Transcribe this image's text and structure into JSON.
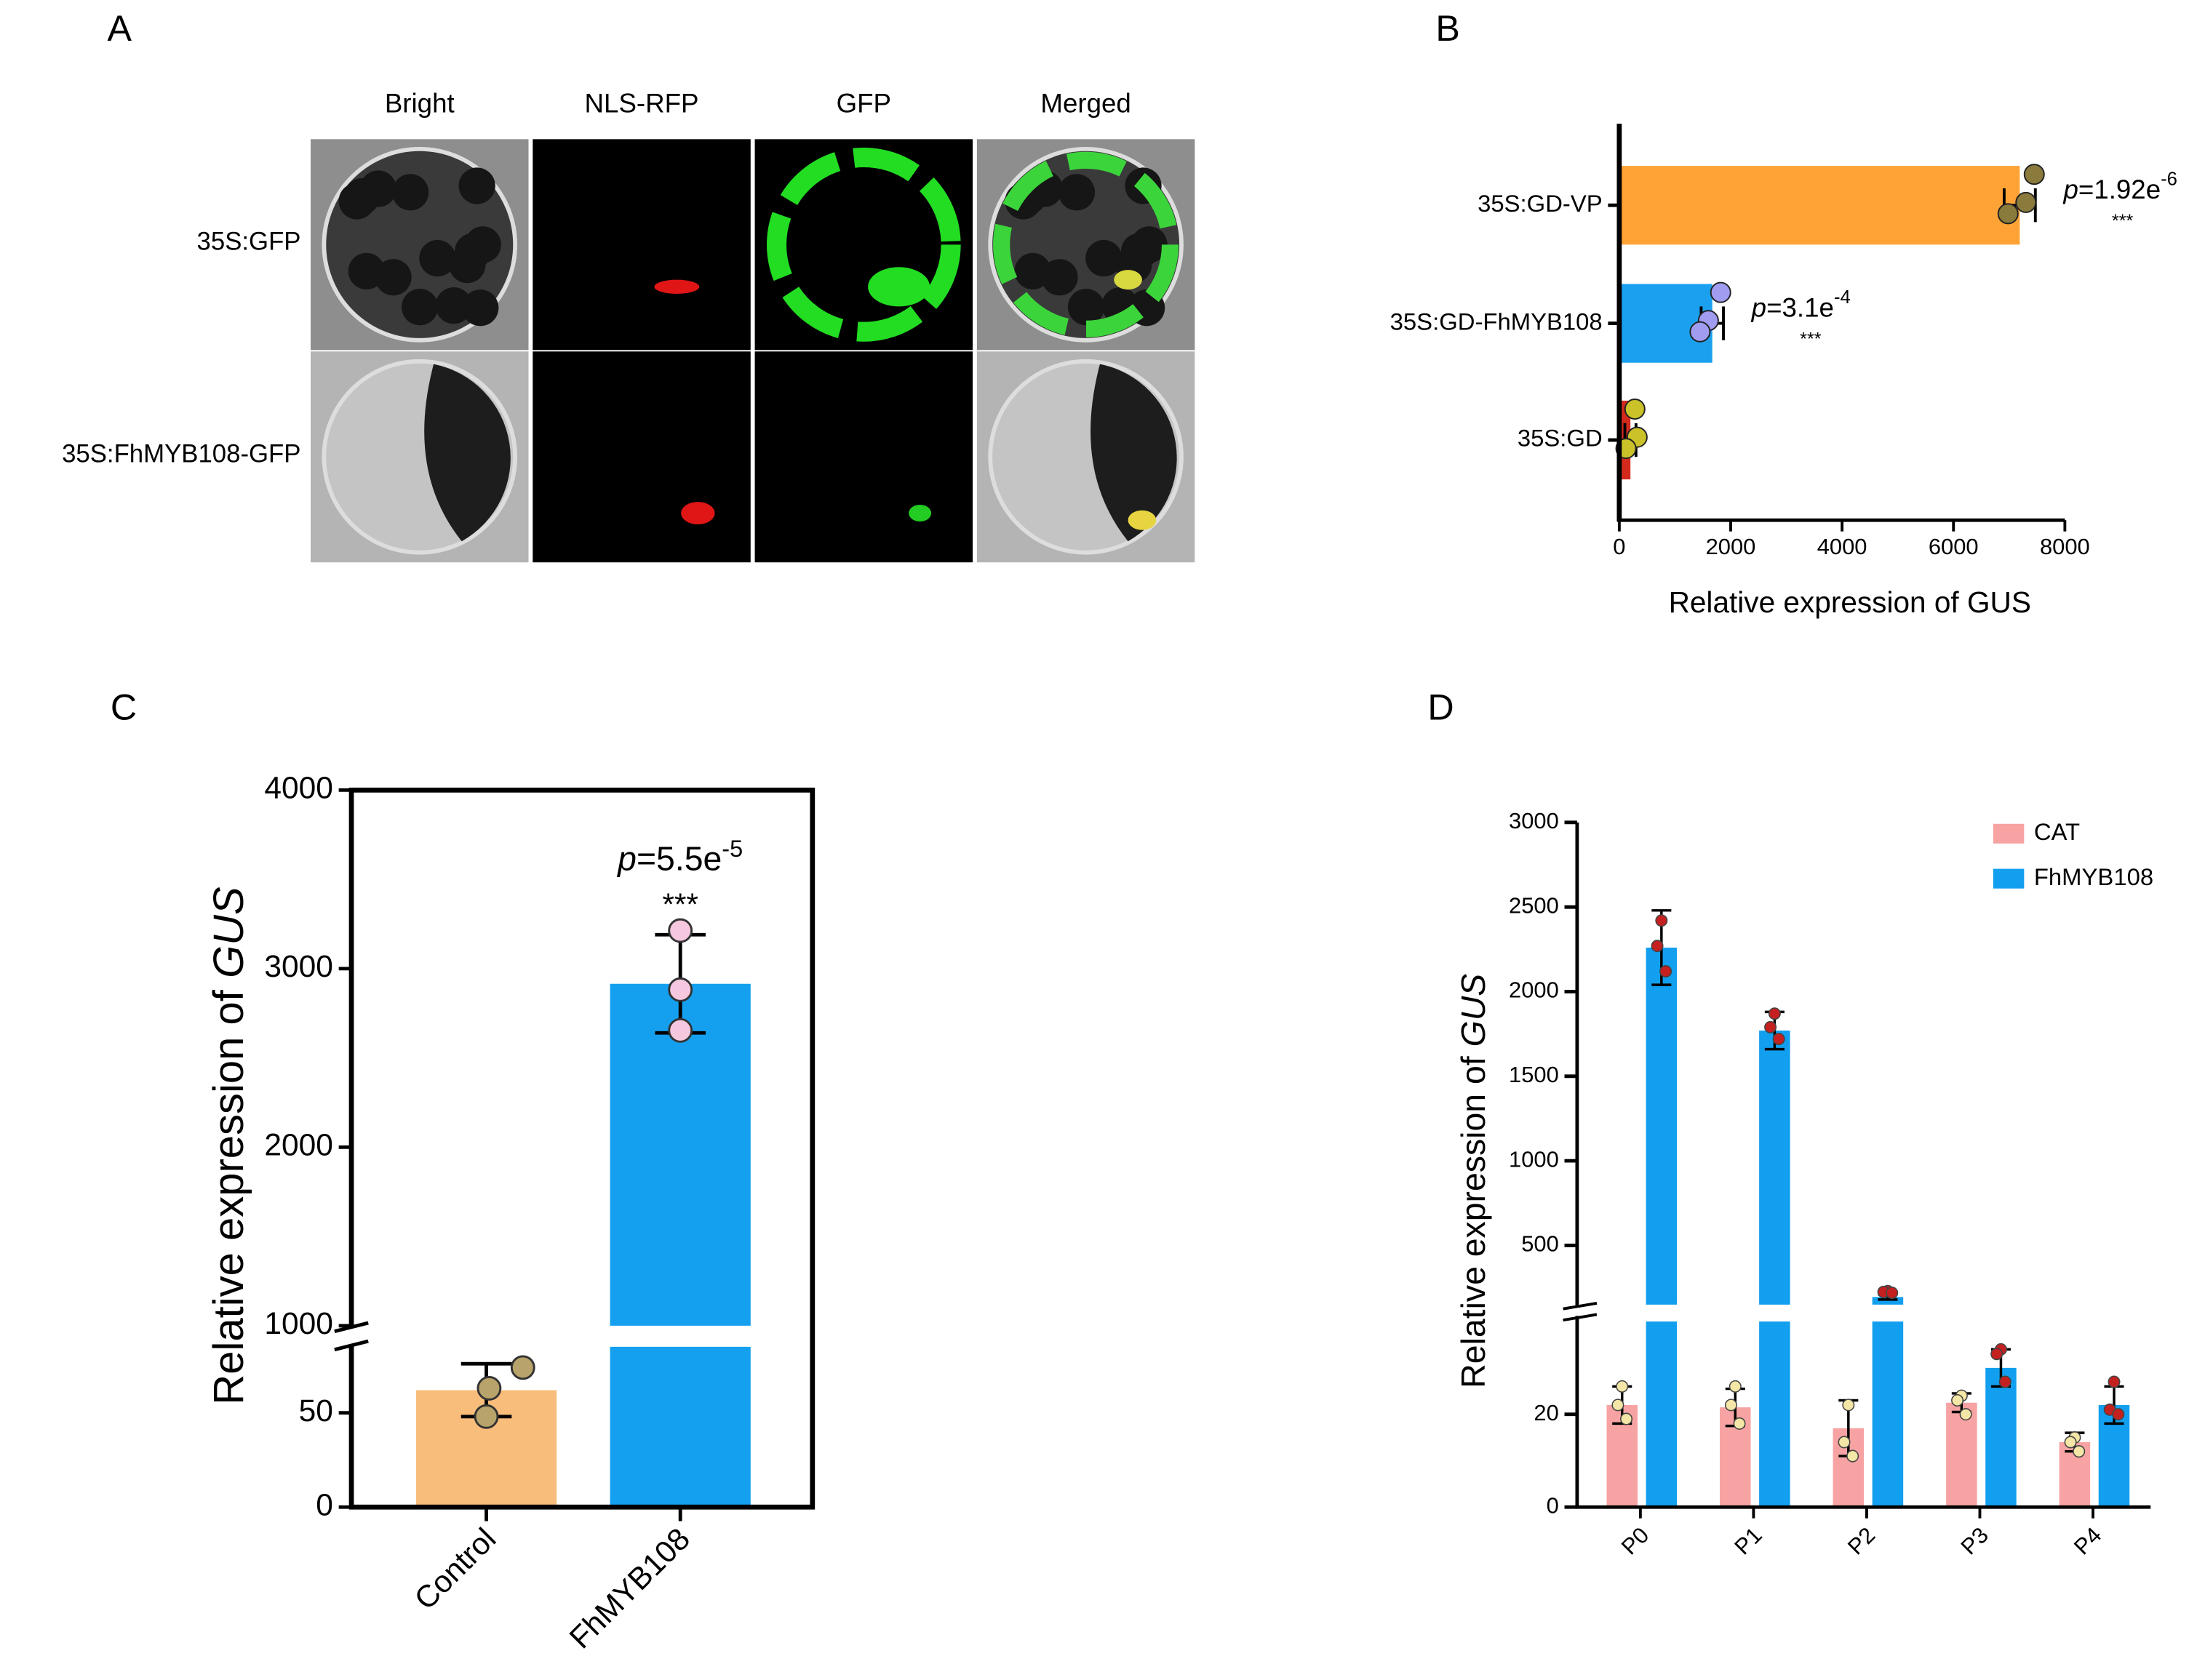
{
  "panel_a": {
    "label": "A",
    "columns": [
      "Bright",
      "NLS-RFP",
      "GFP",
      "Merged"
    ],
    "rows": [
      "35S:GFP",
      "35S:FhMYB108-GFP"
    ]
  },
  "chart_data": [
    {
      "panel_label": "B",
      "type": "bar",
      "orientation": "horizontal",
      "categories": [
        "35S:GD-VP",
        "35S:GD-FhMYB108",
        "35S:GD"
      ],
      "values": [
        7190,
        1670,
        200
      ],
      "errors": [
        280,
        200,
        100
      ],
      "points": [
        [
          7450,
          7300,
          6980
        ],
        [
          1820,
          1600,
          1450
        ],
        [
          280,
          320,
          120
        ]
      ],
      "colors": [
        "#ffa336",
        "#1aa0ee",
        "#d42a1e"
      ],
      "point_colors": [
        "#8a7a3c",
        "#a09cf0",
        "#cbc22a"
      ],
      "xlabel": "Relative expression of GUS",
      "xlim": [
        0,
        8000
      ],
      "xticks": [
        0,
        2000,
        4000,
        6000,
        8000
      ],
      "annotations": [
        {
          "italic": "p",
          "text": "=1.92e",
          "sup": "-6",
          "stars": "***"
        },
        {
          "italic": "p",
          "text": "=3.1e",
          "sup": "-4",
          "stars": "***"
        },
        null
      ]
    },
    {
      "panel_label": "C",
      "type": "bar",
      "orientation": "vertical",
      "categories": [
        "Control",
        "FhMYB108"
      ],
      "values": [
        62,
        2915
      ],
      "errors": [
        14,
        275
      ],
      "points": [
        [
          74,
          63,
          48
        ],
        [
          3213,
          2882,
          2654
        ]
      ],
      "colors": [
        "#f9bd7b",
        "#15a0ef"
      ],
      "point_colors": [
        "#b8a36a",
        "#f5c8e0"
      ],
      "ylabel": "Relative expression of",
      "ylabel_italic": "GUS",
      "ysegments": [
        {
          "ylim": [
            0,
            85
          ],
          "yticks": [
            0,
            50
          ]
        },
        {
          "ylim": [
            1000,
            4000
          ],
          "yticks": [
            1000,
            2000,
            3000,
            4000
          ]
        }
      ],
      "annotations": [
        null,
        {
          "italic": "p",
          "text": "=5.5e",
          "sup": "-5",
          "stars": "***"
        }
      ]
    },
    {
      "panel_label": "D",
      "type": "grouped_bar",
      "categories": [
        "P0",
        "P1",
        "P2",
        "P3",
        "P4"
      ],
      "series": [
        {
          "name": "CAT",
          "color": "#f7a3a3",
          "point_color": "#f3e6a6",
          "values": [
            22,
            21.5,
            17,
            22.5,
            14
          ],
          "errors": [
            4,
            4,
            6,
            2,
            2
          ],
          "points": [
            [
              26,
              22,
              19
            ],
            [
              26,
              22,
              18
            ],
            [
              22,
              14,
              11
            ],
            [
              24,
              23,
              20
            ],
            [
              15,
              14,
              12
            ]
          ]
        },
        {
          "name": "FhMYB108",
          "color": "#139fef",
          "point_color": "#c42020",
          "values": [
            2260,
            1770,
            195,
            30,
            22
          ],
          "errors": [
            220,
            110,
            15,
            4,
            4
          ],
          "points": [
            [
              2420,
              2270,
              2120
            ],
            [
              1870,
              1790,
              1720
            ],
            [
              230,
              225,
              220
            ],
            [
              34,
              33,
              27
            ],
            [
              27,
              21,
              20
            ]
          ]
        }
      ],
      "ylabel": "Relative expression of",
      "ylabel_italic": "GUS",
      "ysegments": [
        {
          "ylim": [
            0,
            40
          ],
          "yticks": [
            0,
            20
          ]
        },
        {
          "ylim": [
            150,
            3000
          ],
          "yticks": [
            500,
            1000,
            1500,
            2000,
            2500,
            3000
          ]
        }
      ],
      "legend": "upper right"
    }
  ]
}
